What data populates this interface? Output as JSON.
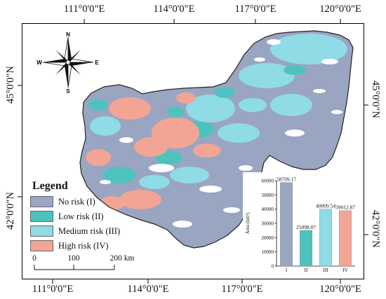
{
  "map": {
    "lon_labels_top": [
      "111°0'0\"E",
      "114°0'0\"E",
      "117°0'0\"E",
      "120°0'0\"E"
    ],
    "lon_labels_bottom": [
      "111°0'0\"E",
      "114°0'0\"E",
      "117°0'0\"E",
      "120°0'0\"E"
    ],
    "lat_labels_left": [
      "45°0'0\"N",
      "42°0'0\"N"
    ],
    "lat_labels_right": [
      "45°0'0\"N",
      "42°0'0\"N"
    ]
  },
  "north_arrow": {
    "n": "N",
    "s": "S",
    "e": "E",
    "w": "W"
  },
  "legend": {
    "title": "Legend",
    "items": [
      {
        "label": "No risk (I)",
        "color": "#9aa5c2"
      },
      {
        "label": "Low risk (II)",
        "color": "#4ec3bd"
      },
      {
        "label": "Medium risk (III)",
        "color": "#8fdbe6"
      },
      {
        "label": "High risk (IV)",
        "color": "#f2a595"
      }
    ]
  },
  "scale_bar": {
    "labels": [
      "0",
      "100",
      "200 km"
    ]
  },
  "chart_data": {
    "type": "bar",
    "categories": [
      "I",
      "II",
      "III",
      "IV"
    ],
    "values": [
      58709.17,
      25098.07,
      40009.54,
      39012.87
    ],
    "value_labels": [
      "58709.17",
      "25098.07",
      "40009.54",
      "39012.87"
    ],
    "colors": [
      "#9aa5c2",
      "#4ec3bd",
      "#8fdbe6",
      "#f2a595"
    ],
    "ylabel": "Area (km²)",
    "ylim": [
      0,
      60000
    ],
    "yticks": [
      "0",
      "10000",
      "20000",
      "30000",
      "40000",
      "50000",
      "60000"
    ],
    "ytick_values": [
      0,
      10000,
      20000,
      30000,
      40000,
      50000,
      60000
    ],
    "grid": false
  }
}
